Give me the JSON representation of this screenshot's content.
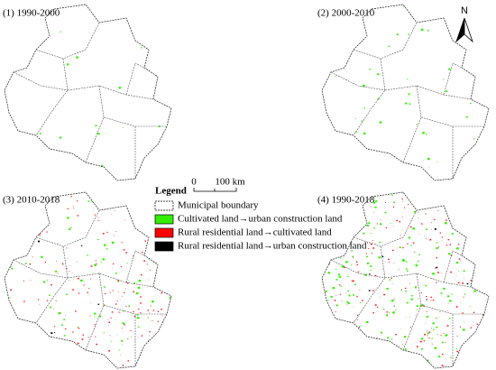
{
  "panels": [
    {
      "label": "(1) 1990-2000"
    },
    {
      "label": "(2) 2000-2010"
    },
    {
      "label": "(3) 2010-2018"
    },
    {
      "label": "(4) 1990-2018"
    }
  ],
  "legend": {
    "title": "Legend",
    "scale_start": "0",
    "scale_end": "100 km",
    "items": [
      {
        "label": "Municipal boundary",
        "color": "#ffffff"
      },
      {
        "label": "Cultivated land→urban construction land",
        "color": "#33ee00"
      },
      {
        "label": "Rural residential land→cultivated land",
        "color": "#ff0000"
      },
      {
        "label": "Rural residential land→urban construction land",
        "color": "#000000"
      }
    ]
  },
  "north": "N"
}
